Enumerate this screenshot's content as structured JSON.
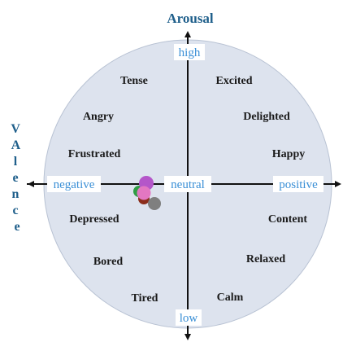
{
  "axes": {
    "vertical_title": "Arousal",
    "horizontal_title": "VAlence",
    "high": "high",
    "low": "low",
    "negative": "negative",
    "neutral": "neutral",
    "positive": "positive"
  },
  "emotions": {
    "tense": "Tense",
    "excited": "Excited",
    "angry": "Angry",
    "delighted": "Delighted",
    "frustrated": "Frustrated",
    "happy": "Happy",
    "depressed": "Depressed",
    "content": "Content",
    "bored": "Bored",
    "relaxed": "Relaxed",
    "tired": "Tired",
    "calm": "Calm"
  },
  "colors": {
    "circle_fill": "#dde3ee",
    "circle_stroke": "#b8c2d3",
    "axis": "#111111",
    "title": "#1f5f8b",
    "axis_label": "#3a8fd6"
  },
  "markers": [
    {
      "name": "green-dot",
      "color": "#2f9e44"
    },
    {
      "name": "darkred-dot",
      "color": "#8b2d1b"
    },
    {
      "name": "purple-dot",
      "color": "#b456c9"
    },
    {
      "name": "pink-dot",
      "color": "#e377c2"
    },
    {
      "name": "gray-dot",
      "color": "#7f7f7f"
    }
  ]
}
